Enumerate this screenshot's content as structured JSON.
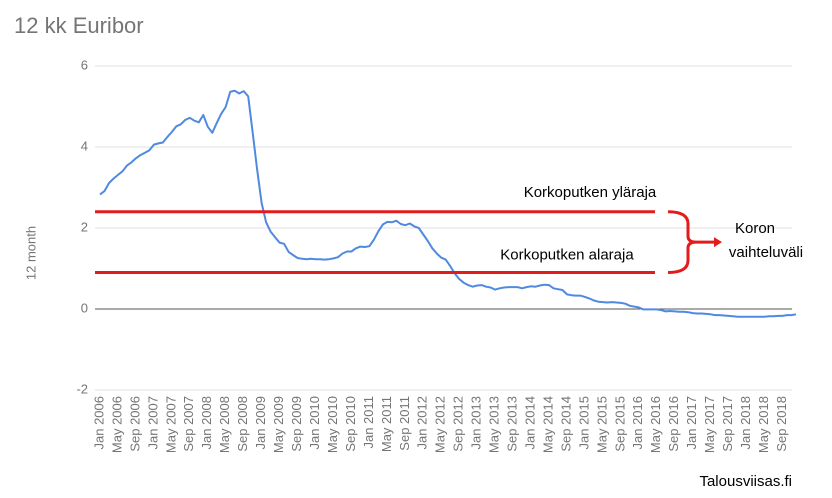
{
  "chart_data": {
    "type": "line",
    "title": "12 kk Euribor",
    "y_label": "12 month",
    "source": "Talousviisas.fi",
    "categories": [
      "Jan 2006",
      null,
      null,
      null,
      "May 2006",
      null,
      null,
      null,
      "Sep 2006",
      null,
      null,
      null,
      "Jan 2007",
      null,
      null,
      null,
      "May 2007",
      null,
      null,
      null,
      "Sep 2007",
      null,
      null,
      null,
      "Jan 2008",
      null,
      null,
      null,
      "May 2008",
      null,
      null,
      null,
      "Sep 2008",
      null,
      null,
      null,
      "Jan 2009",
      null,
      null,
      null,
      "May 2009",
      null,
      null,
      null,
      "Sep 2009",
      null,
      null,
      null,
      "Jan 2010",
      null,
      null,
      null,
      "May 2010",
      null,
      null,
      null,
      "Sep 2010",
      null,
      null,
      null,
      "Jan 2011",
      null,
      null,
      null,
      "May 2011",
      null,
      null,
      null,
      "Sep 2011",
      null,
      null,
      null,
      "Jan 2012",
      null,
      null,
      null,
      "May 2012",
      null,
      null,
      null,
      "Sep 2012",
      null,
      null,
      null,
      "Jan 2013",
      null,
      null,
      null,
      "May 2013",
      null,
      null,
      null,
      "Sep 2013",
      null,
      null,
      null,
      "Jan 2014",
      null,
      null,
      null,
      "May 2014",
      null,
      null,
      null,
      "Sep 2014",
      null,
      null,
      null,
      "Jan 2015",
      null,
      null,
      null,
      "May 2015",
      null,
      null,
      null,
      "Sep 2015",
      null,
      null,
      null,
      "Jan 2016",
      null,
      null,
      null,
      "May 2016",
      null,
      null,
      null,
      "Sep 2016",
      null,
      null,
      null,
      "Jan 2017",
      null,
      null,
      null,
      "May 2017",
      null,
      null,
      null,
      "Sep 2017",
      null,
      null,
      null,
      "Jan 2018",
      null,
      null,
      null,
      "May 2018",
      null,
      null,
      null,
      "Sep 2018",
      null,
      null,
      null
    ],
    "series": [
      {
        "name": "12 month",
        "color": "#4f8ae0",
        "values": [
          2.83,
          2.91,
          3.11,
          3.22,
          3.31,
          3.4,
          3.54,
          3.62,
          3.72,
          3.8,
          3.86,
          3.92,
          4.06,
          4.09,
          4.11,
          4.25,
          4.37,
          4.51,
          4.56,
          4.67,
          4.72,
          4.65,
          4.61,
          4.79,
          4.5,
          4.35,
          4.59,
          4.82,
          4.99,
          5.36,
          5.39,
          5.32,
          5.38,
          5.25,
          4.35,
          3.45,
          2.62,
          2.14,
          1.91,
          1.77,
          1.64,
          1.61,
          1.41,
          1.33,
          1.26,
          1.24,
          1.23,
          1.24,
          1.23,
          1.23,
          1.22,
          1.23,
          1.25,
          1.28,
          1.37,
          1.42,
          1.42,
          1.5,
          1.54,
          1.53,
          1.55,
          1.71,
          1.92,
          2.09,
          2.15,
          2.14,
          2.18,
          2.1,
          2.07,
          2.11,
          2.04,
          2.0,
          1.84,
          1.68,
          1.5,
          1.37,
          1.27,
          1.22,
          1.06,
          0.88,
          0.74,
          0.65,
          0.59,
          0.55,
          0.58,
          0.59,
          0.55,
          0.53,
          0.48,
          0.51,
          0.53,
          0.54,
          0.54,
          0.54,
          0.51,
          0.54,
          0.56,
          0.55,
          0.58,
          0.6,
          0.59,
          0.51,
          0.49,
          0.47,
          0.36,
          0.34,
          0.33,
          0.33,
          0.3,
          0.26,
          0.21,
          0.18,
          0.17,
          0.16,
          0.17,
          0.16,
          0.15,
          0.13,
          0.08,
          0.06,
          0.04,
          -0.01,
          -0.01,
          -0.01,
          -0.01,
          -0.03,
          -0.06,
          -0.05,
          -0.06,
          -0.07,
          -0.07,
          -0.08,
          -0.1,
          -0.11,
          -0.11,
          -0.12,
          -0.13,
          -0.15,
          -0.15,
          -0.16,
          -0.17,
          -0.18,
          -0.19,
          -0.19,
          -0.19,
          -0.19,
          -0.19,
          -0.19,
          -0.19,
          -0.18,
          -0.18,
          -0.17,
          -0.17,
          -0.15,
          -0.15,
          -0.13
        ]
      }
    ],
    "ylim": [
      -2,
      6
    ],
    "yticks": [
      -2,
      0,
      2,
      4,
      6
    ],
    "grid": true,
    "annotations": [
      {
        "text": "Korkoputken yläraja",
        "value": 2.4,
        "color": "#e31b1b"
      },
      {
        "text": "Korkoputken alaraja",
        "value": 0.9,
        "color": "#e31b1b"
      }
    ],
    "range_label": [
      "Koron",
      "vaihteluväli"
    ]
  }
}
